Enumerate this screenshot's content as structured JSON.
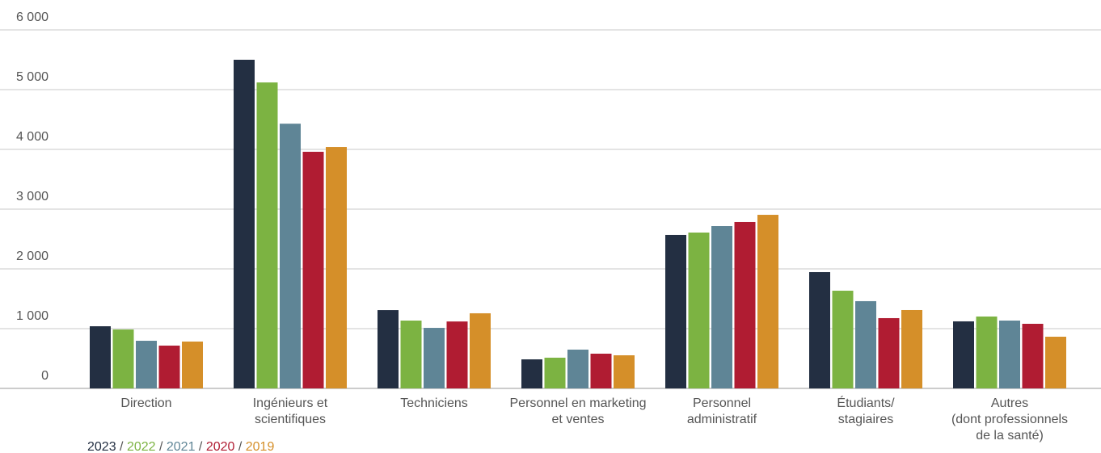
{
  "chart_data": {
    "type": "bar",
    "categories": [
      "Direction",
      "Ingénieurs et\nscientifiques",
      "Techniciens",
      "Personnel en marketing\net ventes",
      "Personnel\nadministratif",
      "Étudiants/\nstagiaires",
      "Autres\n(dont professionnels\nde la santé)"
    ],
    "series": [
      {
        "name": "2023",
        "color": "#232f42",
        "values": [
          1040,
          5500,
          1310,
          486,
          2568,
          1946,
          1122
        ]
      },
      {
        "name": "2022",
        "color": "#7cb342",
        "values": [
          986,
          5120,
          1135,
          514,
          2608,
          1635,
          1203
        ]
      },
      {
        "name": "2021",
        "color": "#5f8596",
        "values": [
          797,
          4430,
          1013,
          649,
          2716,
          1460,
          1135
        ]
      },
      {
        "name": "2020",
        "color": "#b01c32",
        "values": [
          716,
          3960,
          1120,
          581,
          2784,
          1176,
          1081
        ]
      },
      {
        "name": "2019",
        "color": "#d58f29",
        "values": [
          784,
          4040,
          1257,
          554,
          2905,
          1311,
          865
        ]
      }
    ],
    "legend_separator": "/",
    "ylim": [
      0,
      6000
    ],
    "yticks": [
      0,
      {
        "value": 1000,
        "label": "1 000"
      },
      {
        "value": 2000,
        "label": "2 000"
      },
      {
        "value": 3000,
        "label": "3 000"
      },
      {
        "value": 4000,
        "label": "4 000"
      },
      {
        "value": 5000,
        "label": "5 000"
      },
      {
        "value": 6000,
        "label": "6 000"
      }
    ],
    "grid": true
  }
}
